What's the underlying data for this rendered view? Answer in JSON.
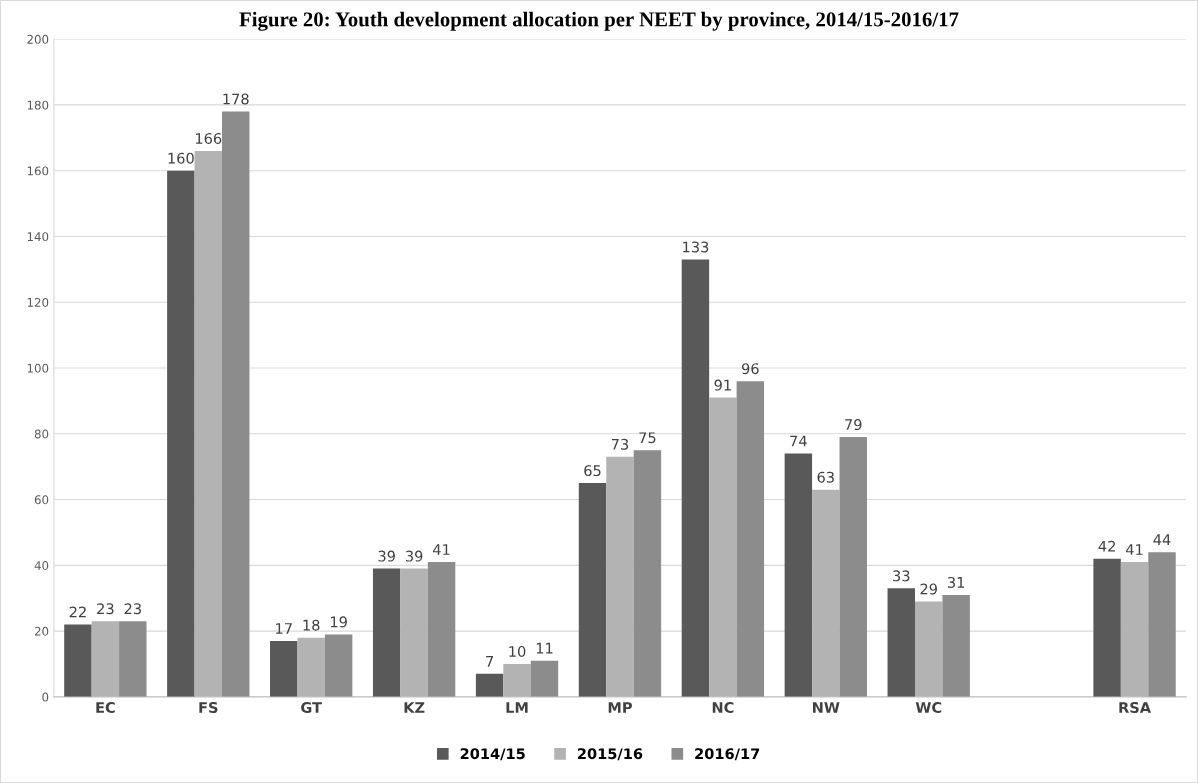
{
  "chart_data": {
    "type": "bar",
    "title": "Figure 20: Youth development allocation per NEET by province, 2014/15-2016/17",
    "categories": [
      "EC",
      "FS",
      "GT",
      "KZ",
      "LM",
      "MP",
      "NC",
      "NW",
      "WC",
      null,
      "RSA"
    ],
    "series": [
      {
        "name": "2014/15",
        "color": "#595959",
        "values": [
          22,
          160,
          17,
          39,
          7,
          65,
          133,
          74,
          33,
          null,
          42
        ]
      },
      {
        "name": "2015/16",
        "color": "#b3b3b3",
        "values": [
          23,
          166,
          18,
          39,
          10,
          73,
          91,
          63,
          29,
          null,
          41
        ]
      },
      {
        "name": "2016/17",
        "color": "#8c8c8c",
        "values": [
          23,
          178,
          19,
          41,
          11,
          75,
          96,
          79,
          31,
          null,
          44
        ]
      }
    ],
    "ylim": [
      0,
      200
    ],
    "yticks": [
      0,
      20,
      40,
      60,
      80,
      100,
      120,
      140,
      160,
      180,
      200
    ],
    "grid": "y",
    "legend": "bottom",
    "data_labels": true
  }
}
